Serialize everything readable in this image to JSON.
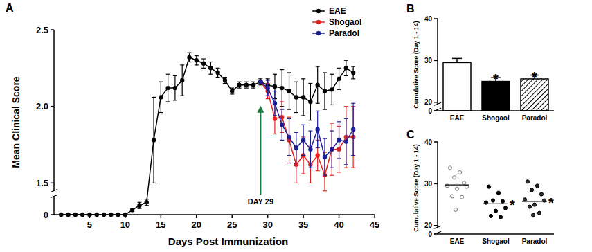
{
  "chart_data": [
    {
      "panel": "A",
      "type": "line",
      "x_label": "Days Post Immunization",
      "y_label": "Mean Clinical Score",
      "xlim": [
        0,
        45
      ],
      "xticks": [
        5,
        10,
        15,
        20,
        25,
        30,
        35,
        40,
        45
      ],
      "ylim": [
        0,
        2.5
      ],
      "y_break": [
        0.12,
        1.45
      ],
      "yticks": [
        0,
        1.5,
        {
          "value": 2,
          "label": "2.0"
        },
        2.5
      ],
      "legend": "top-right",
      "marker": "circle",
      "series": [
        {
          "name": "EAE",
          "color": "#000000",
          "x": [
            1,
            2,
            3,
            4,
            5,
            6,
            7,
            8,
            9,
            10,
            11,
            12,
            13,
            14,
            15,
            16,
            17,
            18,
            19,
            20,
            21,
            22,
            23,
            24,
            25,
            26,
            27,
            28,
            29,
            30,
            31,
            32,
            33,
            34,
            35,
            36,
            37,
            38,
            39,
            40,
            41,
            42
          ],
          "values": [
            0,
            0,
            0,
            0,
            0,
            0,
            0,
            0,
            0,
            0,
            0.03,
            0.06,
            0.08,
            1.78,
            2.06,
            2.12,
            2.12,
            2.17,
            2.32,
            2.3,
            2.28,
            2.25,
            2.22,
            2.17,
            2.1,
            2.14,
            2.14,
            2.14,
            2.16,
            2.14,
            2.13,
            2.12,
            2.1,
            2.06,
            2.06,
            2.03,
            2.14,
            2.1,
            2.11,
            2.18,
            2.25,
            2.22
          ],
          "errors": [
            0,
            0,
            0,
            0,
            0,
            0,
            0,
            0,
            0,
            0,
            0.01,
            0.02,
            0.02,
            0.28,
            0.1,
            0.09,
            0.08,
            0.1,
            0.03,
            0.03,
            0.03,
            0.04,
            0.03,
            0.02,
            0.02,
            0.02,
            0.02,
            0.02,
            0.02,
            0.04,
            0.08,
            0.12,
            0.12,
            0.1,
            0.12,
            0.12,
            0.12,
            0.12,
            0.1,
            0.07,
            0.05,
            0.04
          ]
        },
        {
          "name": "Shogaol",
          "color": "#e3201b",
          "x": [
            29,
            30,
            31,
            32,
            33,
            34,
            35,
            36,
            37,
            38,
            39,
            40,
            41,
            42
          ],
          "values": [
            2.16,
            2.1,
            1.92,
            1.93,
            1.78,
            1.62,
            1.68,
            1.62,
            1.68,
            1.55,
            1.72,
            1.72,
            1.8,
            1.8
          ],
          "errors": [
            0,
            0.05,
            0.1,
            0.1,
            0.15,
            0.12,
            0.12,
            0.12,
            0.1,
            0.15,
            0.17,
            0.15,
            0.2,
            0.2
          ]
        },
        {
          "name": "Paradol",
          "color": "#1c1f9a",
          "x": [
            29,
            30,
            31,
            32,
            33,
            34,
            35,
            36,
            37,
            38,
            39,
            40,
            41,
            42
          ],
          "values": [
            2.16,
            2.12,
            2.02,
            1.88,
            1.8,
            1.73,
            1.78,
            1.72,
            1.85,
            1.67,
            1.72,
            1.78,
            1.77,
            1.85
          ],
          "errors": [
            0,
            0.05,
            0.08,
            0.1,
            0.12,
            0.1,
            0.1,
            0.12,
            0.12,
            0.12,
            0.12,
            0.12,
            0.15,
            0.17
          ]
        }
      ],
      "annotations": [
        {
          "text": "DAY 29",
          "x": 29,
          "y": 2.0,
          "color": "#1b7a3e"
        }
      ]
    },
    {
      "panel": "B",
      "type": "bar",
      "y_label": "Cumulative Score (Day 1 - 14)",
      "categories": [
        "EAE",
        "Shogaol",
        "Paradol"
      ],
      "values": [
        29.5,
        25.0,
        25.6
      ],
      "errors": [
        1.0,
        0.9,
        0.9
      ],
      "colors": [
        "#ffffff",
        "#000000",
        "#000000"
      ],
      "significance": [
        null,
        "*",
        "*"
      ],
      "ylim": [
        0,
        40
      ],
      "y_break": [
        0.3,
        19.6
      ],
      "yticks": [
        0,
        20,
        30,
        40
      ]
    },
    {
      "panel": "C",
      "type": "dot",
      "y_label": "Cumulative Score (Day 1 - 14)",
      "categories": [
        "EAE",
        "Shogaol",
        "Paradol"
      ],
      "values": [
        [
          33.8,
          32.7,
          31.5,
          30.2,
          29.5,
          29.3,
          28.8,
          27.0,
          26.8,
          23.8
        ],
        [
          29.3,
          27.8,
          26.0,
          25.8,
          25.5,
          24.2,
          23.5,
          22.3,
          22.0
        ],
        [
          30.5,
          29.5,
          28.5,
          27.5,
          26.2,
          26.0,
          25.0,
          24.5,
          23.0,
          22.5
        ]
      ],
      "means": [
        29.7,
        25.2,
        25.8
      ],
      "colors": [
        "#ffffff",
        "#000000",
        "#333333"
      ],
      "significance": [
        null,
        "*",
        "*"
      ],
      "ylim": [
        0,
        40
      ],
      "y_break": [
        0.3,
        19.6
      ],
      "yticks": [
        0,
        20,
        30,
        40
      ]
    }
  ]
}
